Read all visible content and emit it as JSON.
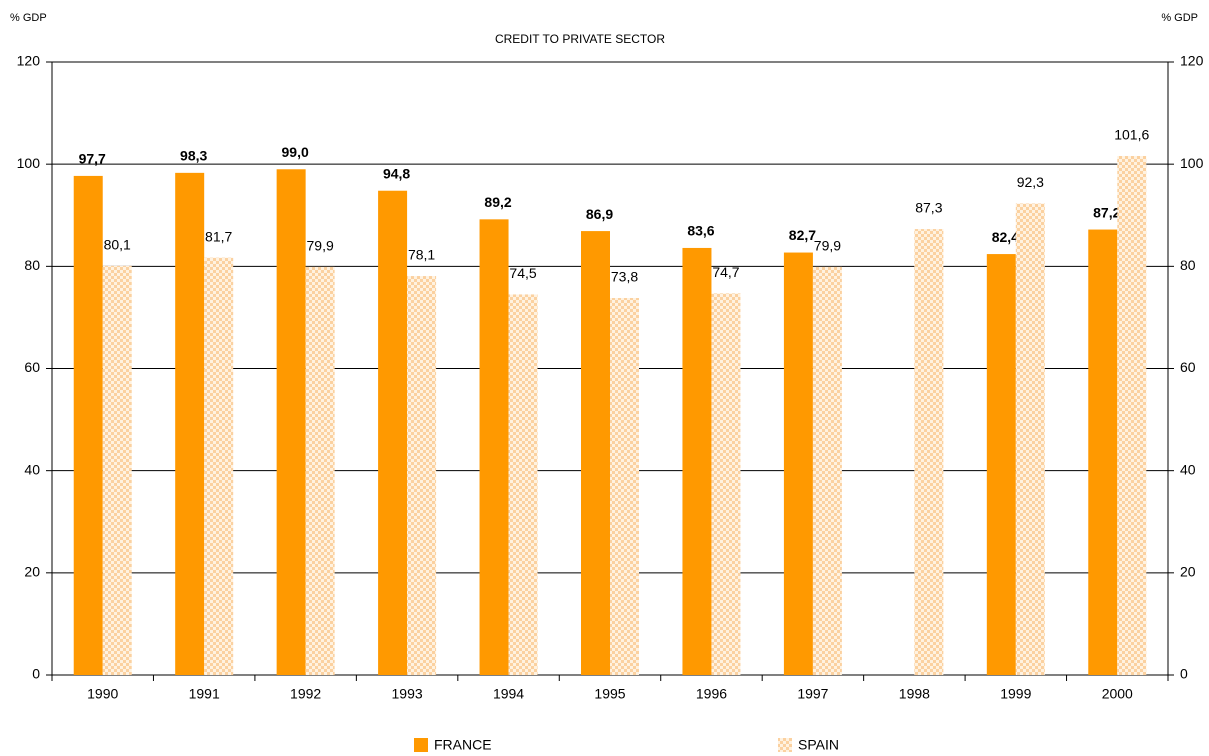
{
  "chart_data": {
    "type": "bar",
    "title": "CREDIT TO PRIVATE SECTOR",
    "ylabel": "% GDP",
    "y2label": "% GDP",
    "categories": [
      "1990",
      "1991",
      "1992",
      "1993",
      "1994",
      "1995",
      "1996",
      "1997",
      "1998",
      "1999",
      "2000"
    ],
    "series": [
      {
        "name": "FRANCE",
        "color": "#ff9900",
        "values": [
          97.7,
          98.3,
          99.0,
          94.8,
          89.2,
          86.9,
          83.6,
          82.7,
          null,
          82.4,
          87.2
        ],
        "value_labels": [
          "97,7",
          "98,3",
          "99,0",
          "94,8",
          "89,2",
          "86,9",
          "83,6",
          "82,7",
          null,
          "82,4",
          "87,2"
        ]
      },
      {
        "name": "SPAIN",
        "color": "#fbd1a0",
        "values": [
          80.1,
          81.7,
          79.9,
          78.1,
          74.5,
          73.8,
          74.7,
          79.9,
          87.3,
          92.3,
          101.6
        ],
        "value_labels": [
          "80,1",
          "81,7",
          "79,9",
          "78,1",
          "74,5",
          "73,8",
          "74,7",
          "79,9",
          "87,3",
          "92,3",
          "101,6"
        ]
      }
    ],
    "ylim": [
      0,
      120
    ],
    "yticks": [
      0,
      20,
      40,
      60,
      80,
      100,
      120
    ],
    "y2lim": [
      0,
      120
    ],
    "y2ticks": [
      0,
      20,
      40,
      60,
      80,
      100,
      120
    ],
    "grid": true,
    "legend": "bottom"
  }
}
